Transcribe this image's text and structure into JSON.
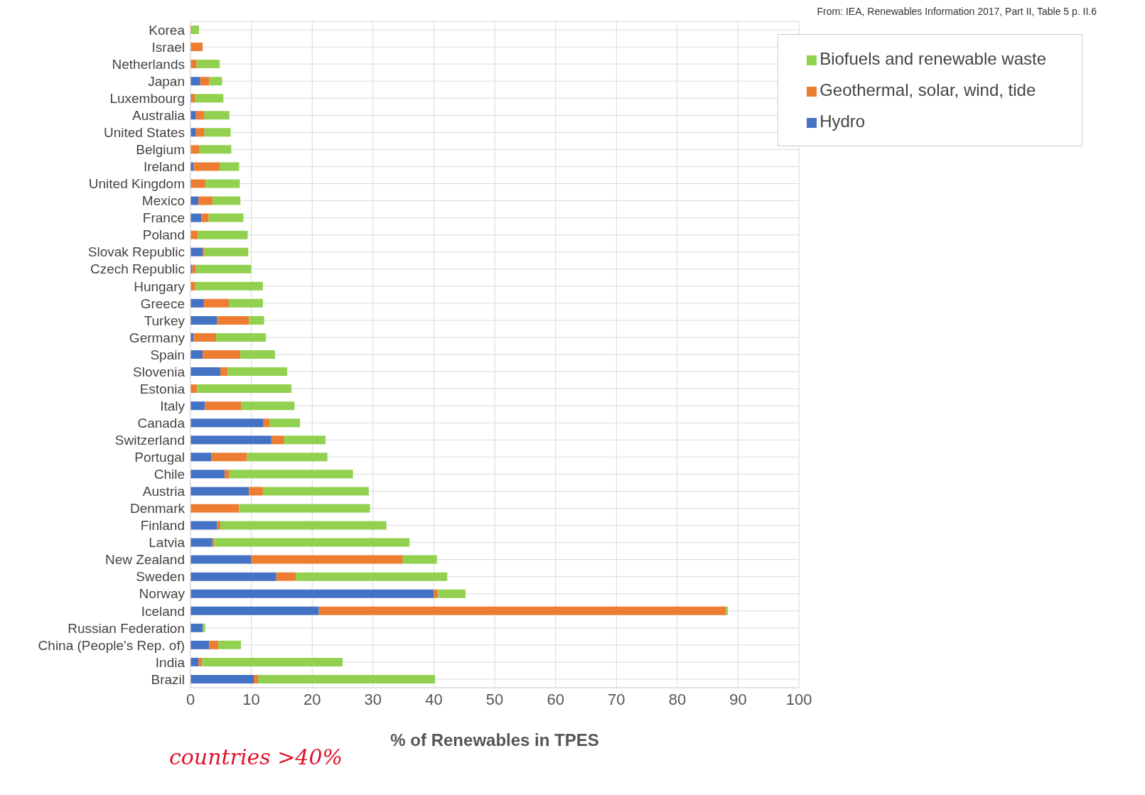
{
  "chart_data": {
    "type": "bar",
    "orientation": "horizontal",
    "stacked": true,
    "xlabel": "% of Renewables in TPES",
    "annotations": [
      "From: IEA, Renewables Information 2017, Part II, Table 5 p. II.6",
      "countries >40%"
    ],
    "categories": [
      "Korea",
      "Israel",
      "Netherlands",
      "Japan",
      "Luxembourg",
      "Australia",
      "United States",
      "Belgium",
      "Ireland",
      "United Kingdom",
      "Mexico",
      "France",
      "Poland",
      "Slovak Republic",
      "Czech Republic",
      "Hungary",
      "Greece",
      "Turkey",
      "Germany",
      "Spain",
      "Slovenia",
      "Estonia",
      "Italy",
      "Canada",
      "Switzerland",
      "Portugal",
      "Chile",
      "Austria",
      "Denmark",
      "Finland",
      "Latvia",
      "New Zealand",
      "Sweden",
      "Norway",
      "Iceland",
      "Russian Federation",
      "China (People's Rep. of)",
      "India",
      "Brazil"
    ],
    "series": [
      {
        "name": "Hydro",
        "color": "#4472c4",
        "values": [
          0,
          0,
          0,
          1.6,
          0.2,
          0.9,
          0.9,
          0,
          0.5,
          0.2,
          1.3,
          1.8,
          0,
          2.0,
          0.3,
          0,
          2.2,
          4.4,
          0.5,
          2.0,
          4.9,
          0,
          2.4,
          12.0,
          13.3,
          3.4,
          5.6,
          9.6,
          0,
          4.4,
          3.6,
          10.0,
          14.1,
          40.0,
          21.1,
          2.0,
          3.1,
          1.3,
          10.4
        ]
      },
      {
        "name": "Geothermal, solar, wind, tide",
        "color": "#ed7d31",
        "values": [
          0.2,
          2.0,
          1.0,
          1.5,
          0.5,
          1.4,
          1.4,
          1.4,
          4.3,
          2.3,
          2.3,
          1.2,
          1.2,
          0.3,
          0.6,
          0.8,
          4.1,
          5.2,
          3.7,
          6.2,
          1.2,
          1.1,
          5.9,
          1.0,
          2.1,
          5.9,
          0.8,
          2.3,
          8.0,
          0.5,
          0.3,
          24.9,
          3.2,
          0.7,
          66.9,
          0,
          1.5,
          0.6,
          0.7
        ]
      },
      {
        "name": "Biofuels and renewable waste",
        "color": "#92d050",
        "values": [
          1.2,
          0,
          3.8,
          2.1,
          4.7,
          4.1,
          4.3,
          5.3,
          3.2,
          5.6,
          4.6,
          5.7,
          8.2,
          7.2,
          9.1,
          11.1,
          5.6,
          2.5,
          8.2,
          5.7,
          9.8,
          15.5,
          8.8,
          5.0,
          6.8,
          13.2,
          20.3,
          17.4,
          21.5,
          27.3,
          32.1,
          5.6,
          24.9,
          4.5,
          0.3,
          0.4,
          3.7,
          23.1,
          29.1
        ]
      }
    ],
    "xlim": [
      0,
      100
    ],
    "xticks": [
      0,
      10,
      20,
      30,
      40,
      50,
      60,
      70,
      80,
      90,
      100
    ],
    "grid": true,
    "legend": "top right"
  }
}
